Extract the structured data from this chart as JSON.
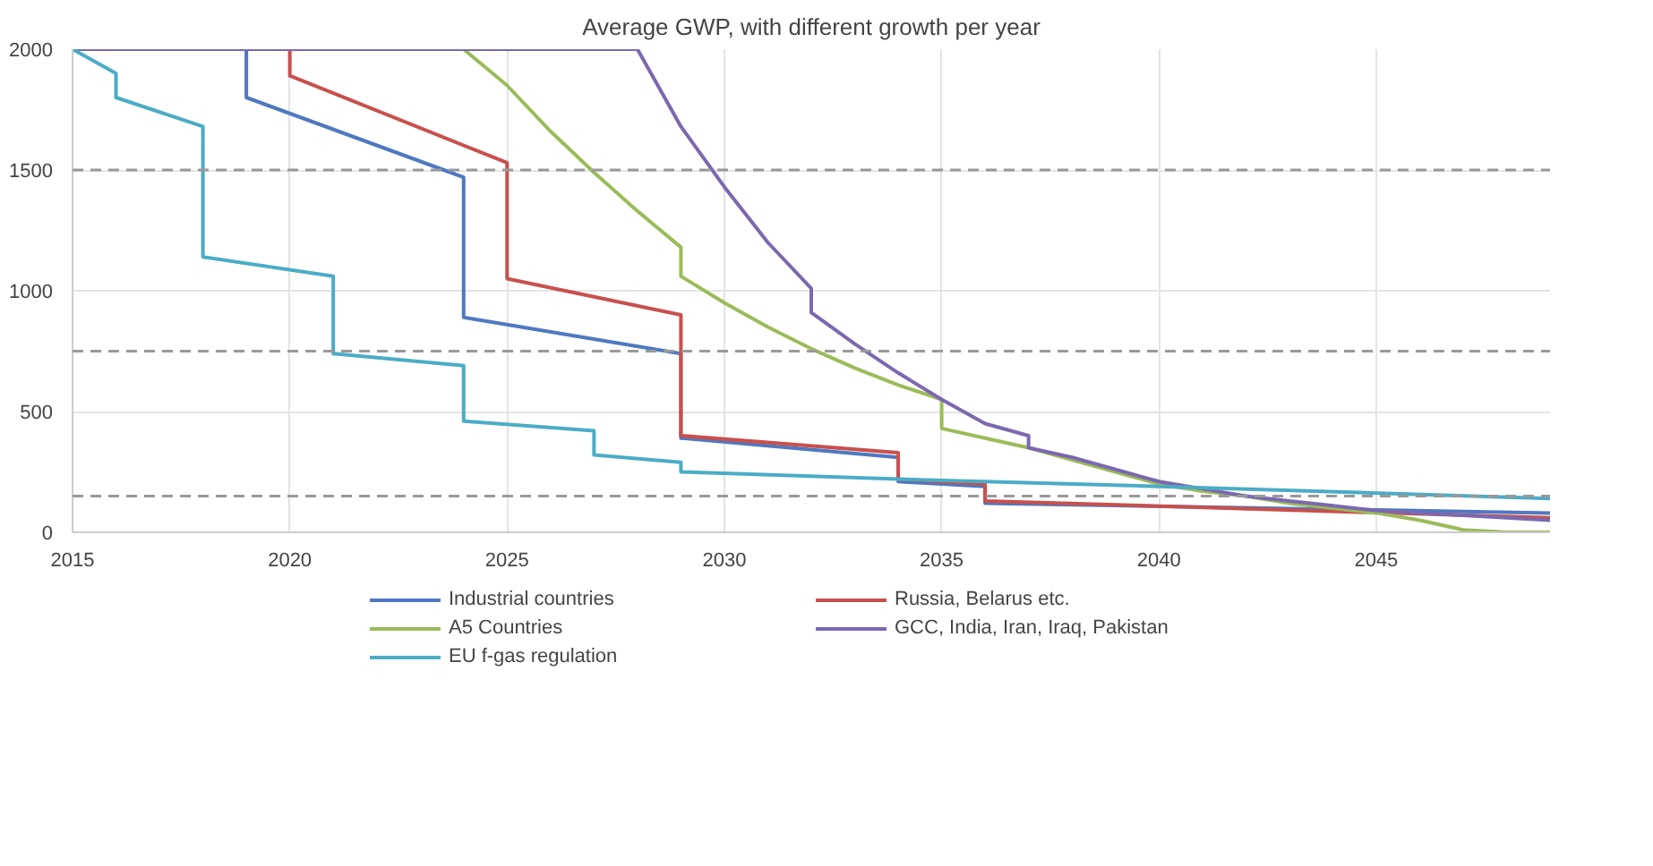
{
  "chart_data": {
    "type": "line",
    "title": "Average GWP, with different growth per year",
    "xlim": [
      2015,
      2049
    ],
    "xticks": [
      2015,
      2020,
      2025,
      2030,
      2035,
      2040,
      2045
    ],
    "ylim": [
      0,
      2000
    ],
    "yticks": [
      0,
      500,
      1000,
      1500,
      2000
    ],
    "grid": true,
    "legend": "bottom",
    "line_style": "solid",
    "marker": "none",
    "series": [
      {
        "name": "Industrial countries",
        "color": "#4f78c0",
        "x": [
          2015,
          2019,
          2019,
          2024,
          2024,
          2029,
          2029,
          2034,
          2034,
          2036,
          2036,
          2049
        ],
        "values": [
          2000,
          2000,
          1800,
          1470,
          890,
          740,
          390,
          310,
          210,
          190,
          120,
          80
        ]
      },
      {
        "name": "Russia, Belarus etc.",
        "color": "#c8504d",
        "x": [
          2015,
          2020,
          2020,
          2025,
          2025,
          2029,
          2029,
          2034,
          2034,
          2036,
          2036,
          2049
        ],
        "values": [
          2000,
          2000,
          1890,
          1530,
          1050,
          900,
          400,
          330,
          220,
          200,
          130,
          60
        ]
      },
      {
        "name": "A5 Countries",
        "color": "#9bbb59",
        "x": [
          2015,
          2024,
          2025,
          2026,
          2027,
          2028,
          2029,
          2029,
          2030,
          2031,
          2032,
          2033,
          2034,
          2035,
          2035,
          2036,
          2037,
          2038,
          2039,
          2040,
          2041,
          2042,
          2043,
          2044,
          2045,
          2046,
          2047,
          2048,
          2049
        ],
        "values": [
          2000,
          2000,
          1850,
          1660,
          1490,
          1330,
          1180,
          1060,
          950,
          850,
          760,
          680,
          610,
          550,
          430,
          390,
          350,
          300,
          250,
          200,
          170,
          150,
          120,
          100,
          80,
          50,
          10,
          0,
          0
        ]
      },
      {
        "name": "GCC, India, Iran, Iraq, Pakistan",
        "color": "#7b68b0",
        "x": [
          2015,
          2028,
          2029,
          2030,
          2031,
          2032,
          2032,
          2033,
          2034,
          2035,
          2036,
          2037,
          2037,
          2038,
          2039,
          2040,
          2041,
          2042,
          2043,
          2044,
          2045,
          2046,
          2047,
          2048,
          2049
        ],
        "values": [
          2000,
          2000,
          1680,
          1430,
          1200,
          1010,
          910,
          780,
          660,
          550,
          450,
          400,
          350,
          310,
          260,
          210,
          180,
          150,
          130,
          110,
          90,
          80,
          70,
          60,
          50
        ]
      },
      {
        "name": "EU f-gas regulation",
        "color": "#4bacc6",
        "x": [
          2015,
          2016,
          2016,
          2018,
          2018,
          2021,
          2021,
          2024,
          2024,
          2027,
          2027,
          2029,
          2029,
          2034,
          2040,
          2049
        ],
        "values": [
          2000,
          1900,
          1800,
          1680,
          1140,
          1060,
          740,
          690,
          460,
          420,
          320,
          290,
          250,
          220,
          190,
          140
        ]
      }
    ],
    "ref_lines": [
      {
        "axis": "y",
        "value": 1500,
        "color": "#999999",
        "line_style": "dashed"
      },
      {
        "axis": "y",
        "value": 750,
        "color": "#999999",
        "line_style": "dashed"
      },
      {
        "axis": "y",
        "value": 150,
        "color": "#999999",
        "line_style": "dashed"
      }
    ]
  }
}
